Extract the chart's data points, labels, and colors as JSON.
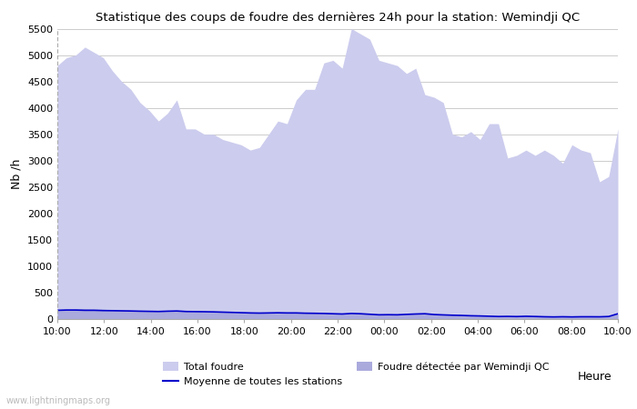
{
  "title": "Statistique des coups de foudre des dernières 24h pour la station: Wemindji QC",
  "xlabel": "Heure",
  "ylabel": "Nb /h",
  "ylim": [
    0,
    5500
  ],
  "yticks": [
    0,
    500,
    1000,
    1500,
    2000,
    2500,
    3000,
    3500,
    4000,
    4500,
    5000,
    5500
  ],
  "x_labels": [
    "10:00",
    "12:00",
    "14:00",
    "16:00",
    "18:00",
    "20:00",
    "22:00",
    "00:00",
    "02:00",
    "04:00",
    "06:00",
    "08:00",
    "10:00"
  ],
  "background_color": "#ffffff",
  "fill_total_color": "#ccccee",
  "fill_local_color": "#aaaadd",
  "line_color": "#0000cc",
  "watermark": "www.lightningmaps.org",
  "total_foudre": [
    4800,
    4950,
    5000,
    5150,
    5050,
    4950,
    4700,
    4500,
    4350,
    4100,
    3950,
    3750,
    3900,
    4150,
    3600,
    3600,
    3500,
    3500,
    3400,
    3350,
    3300,
    3200,
    3250,
    3500,
    3750,
    3700,
    4150,
    4350,
    4350,
    4850,
    4900,
    4750,
    5500,
    5400,
    5300,
    4900,
    4850,
    4800,
    4650,
    4750,
    4250,
    4200,
    4100,
    3500,
    3450,
    3550,
    3400,
    3700,
    3700,
    3050,
    3100,
    3200,
    3100,
    3200,
    3100,
    2950,
    3300,
    3200,
    3150,
    2600,
    2700,
    3600
  ],
  "local_foudre": [
    180,
    190,
    195,
    195,
    190,
    185,
    175,
    170,
    165,
    155,
    150,
    145,
    155,
    160,
    145,
    145,
    140,
    135,
    130,
    125,
    120,
    115,
    110,
    115,
    120,
    115,
    120,
    115,
    110,
    105,
    100,
    95,
    105,
    100,
    90,
    80,
    85,
    80,
    90,
    100,
    105,
    85,
    75,
    70,
    65,
    60,
    55,
    50,
    45,
    50,
    45,
    55,
    50,
    45,
    40,
    45,
    40,
    45,
    45,
    40,
    50,
    100
  ],
  "moyenne": [
    165,
    170,
    170,
    165,
    165,
    160,
    158,
    155,
    152,
    148,
    145,
    142,
    148,
    152,
    142,
    140,
    138,
    135,
    130,
    125,
    120,
    115,
    112,
    115,
    118,
    115,
    115,
    110,
    108,
    105,
    100,
    95,
    105,
    100,
    90,
    80,
    82,
    80,
    88,
    95,
    100,
    85,
    78,
    72,
    68,
    62,
    58,
    53,
    48,
    50,
    47,
    52,
    48,
    43,
    40,
    43,
    40,
    43,
    43,
    42,
    48,
    100
  ]
}
